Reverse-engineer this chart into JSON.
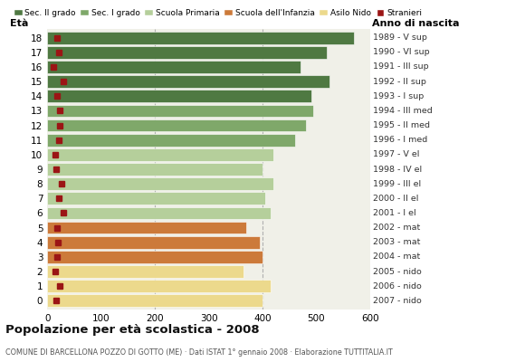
{
  "ages": [
    18,
    17,
    16,
    15,
    14,
    13,
    12,
    11,
    10,
    9,
    8,
    7,
    6,
    5,
    4,
    3,
    2,
    1,
    0
  ],
  "bar_values": [
    570,
    520,
    470,
    525,
    490,
    495,
    480,
    460,
    420,
    400,
    420,
    405,
    415,
    370,
    395,
    400,
    365,
    415,
    400
  ],
  "stranieri_vals": [
    18,
    22,
    12,
    30,
    18,
    24,
    24,
    22,
    14,
    16,
    26,
    22,
    30,
    18,
    20,
    18,
    14,
    24,
    16
  ],
  "year_labels": [
    "1989 - V sup",
    "1990 - VI sup",
    "1991 - III sup",
    "1992 - II sup",
    "1993 - I sup",
    "1994 - III med",
    "1995 - II med",
    "1996 - I med",
    "1997 - V el",
    "1998 - IV el",
    "1999 - III el",
    "2000 - II el",
    "2001 - I el",
    "2002 - mat",
    "2003 - mat",
    "2004 - mat",
    "2005 - nido",
    "2006 - nido",
    "2007 - nido"
  ],
  "bar_colors": [
    "#4f7942",
    "#4f7942",
    "#4f7942",
    "#4f7942",
    "#4f7942",
    "#7fa86a",
    "#7fa86a",
    "#7fa86a",
    "#b5cf9b",
    "#b5cf9b",
    "#b5cf9b",
    "#b5cf9b",
    "#b5cf9b",
    "#cc7a3a",
    "#cc7a3a",
    "#cc7a3a",
    "#ecd98c",
    "#ecd98c",
    "#ecd98c"
  ],
  "legend_labels": [
    "Sec. II grado",
    "Sec. I grado",
    "Scuola Primaria",
    "Scuola dell'Infanzia",
    "Asilo Nido",
    "Stranieri"
  ],
  "legend_colors": [
    "#4f7942",
    "#7fa86a",
    "#b5cf9b",
    "#cc7a3a",
    "#ecd98c",
    "#9b1515"
  ],
  "title": "Popolazione per età scolastica - 2008",
  "subtitle": "COMUNE DI BARCELLONA POZZO DI GOTTO (ME) · Dati ISTAT 1° gennaio 2008 · Elaborazione TUTTITALIA.IT",
  "eta_label": "Età",
  "anno_label": "Anno di nascita",
  "xlim": [
    0,
    600
  ],
  "xticks": [
    0,
    100,
    200,
    300,
    400,
    500,
    600
  ],
  "background_color": "#ffffff",
  "plot_bg_color": "#f0f0e8",
  "stranieri_color": "#9b1515",
  "grid_color": "#b0b0b0"
}
